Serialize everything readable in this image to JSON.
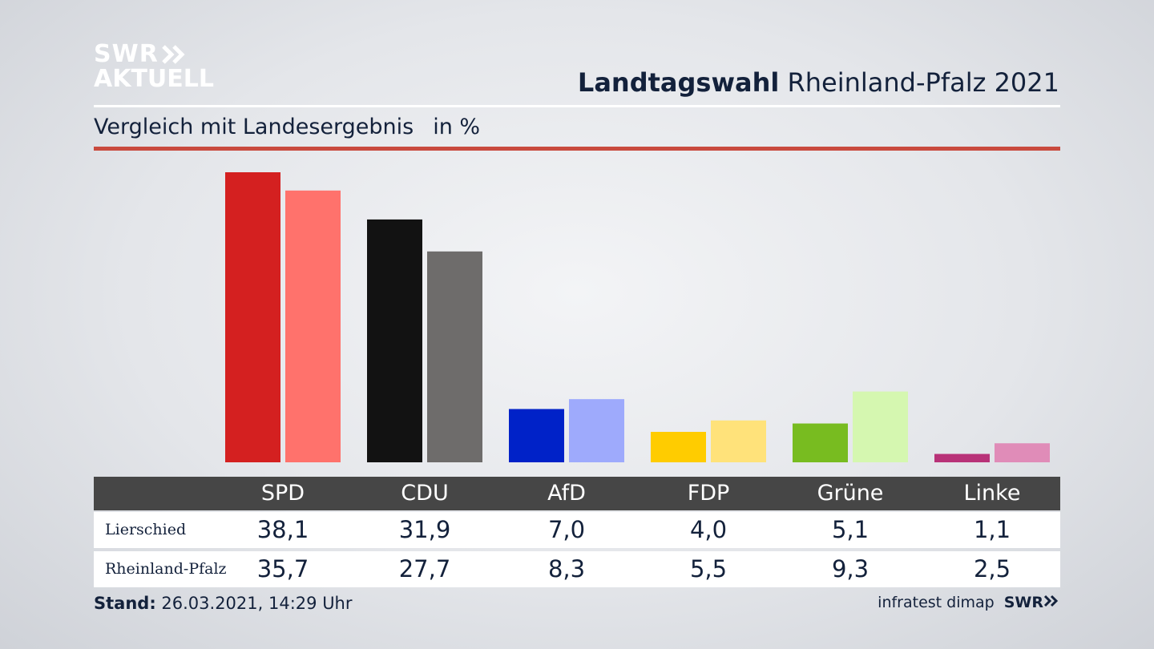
{
  "brand": {
    "logo_line1": "SWR",
    "logo_line2": "AKTUELL",
    "footer_logo": "SWR"
  },
  "header": {
    "title_bold": "Landtagswahl",
    "title_rest": "Rheinland-Pfalz 2021",
    "subtitle": "Vergleich mit Landesergebnis",
    "unit": "in %"
  },
  "colors": {
    "rule_red": "#c94a3e",
    "header_bg": "#464646",
    "text": "#13213b"
  },
  "chart_data": {
    "type": "bar",
    "categories": [
      "SPD",
      "CDU",
      "AfD",
      "FDP",
      "Grüne",
      "Linke"
    ],
    "series": [
      {
        "name": "Lierschied",
        "values": [
          38.1,
          31.9,
          7.0,
          4.0,
          5.1,
          1.1
        ],
        "display": [
          "38,1",
          "31,9",
          "7,0",
          "4,0",
          "5,1",
          "1,1"
        ],
        "colors": [
          "#d42020",
          "#121212",
          "#0022c8",
          "#ffcc00",
          "#78bc20",
          "#b83278"
        ]
      },
      {
        "name": "Rheinland-Pfalz",
        "values": [
          35.7,
          27.7,
          8.3,
          5.5,
          9.3,
          2.5
        ],
        "display": [
          "35,7",
          "27,7",
          "8,3",
          "5,5",
          "9,3",
          "2,5"
        ],
        "colors": [
          "#ff726c",
          "#6e6c6b",
          "#9eaafc",
          "#ffe27a",
          "#d5f7b0",
          "#e08cb8"
        ]
      }
    ],
    "ylim": [
      0,
      38.1
    ]
  },
  "footer": {
    "stand_label": "Stand:",
    "stand_value": "26.03.2021, 14:29 Uhr",
    "source": "infratest dimap"
  }
}
